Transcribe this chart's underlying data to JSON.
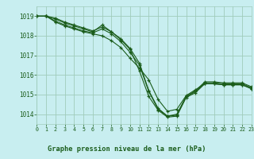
{
  "title": "Graphe pression niveau de la mer (hPa)",
  "bg_color": "#c8eef0",
  "grid_color": "#a0ccbb",
  "line_color": "#1a5c1a",
  "xlim": [
    0,
    23
  ],
  "ylim": [
    1013.5,
    1019.5
  ],
  "yticks": [
    1014,
    1015,
    1016,
    1017,
    1018,
    1019
  ],
  "xticks": [
    0,
    1,
    2,
    3,
    4,
    5,
    6,
    7,
    8,
    9,
    10,
    11,
    12,
    13,
    14,
    15,
    16,
    17,
    18,
    19,
    20,
    21,
    22,
    23
  ],
  "series": [
    [
      1019.0,
      1019.0,
      1018.85,
      1018.65,
      1018.5,
      1018.35,
      1018.2,
      1018.55,
      1018.2,
      1017.8,
      1017.3,
      1016.2,
      1014.9,
      1014.2,
      1013.85,
      1013.9,
      1014.85,
      1015.1,
      1015.55,
      1015.55,
      1015.5,
      1015.5,
      1015.5,
      1015.3
    ],
    [
      1019.0,
      1019.0,
      1018.7,
      1018.5,
      1018.35,
      1018.2,
      1018.1,
      1018.0,
      1017.75,
      1017.4,
      1016.85,
      1016.35,
      1015.75,
      1014.75,
      1014.15,
      1014.25,
      1014.95,
      1015.25,
      1015.55,
      1015.55,
      1015.5,
      1015.5,
      1015.5,
      1015.3
    ],
    [
      1019.0,
      1019.0,
      1018.75,
      1018.55,
      1018.4,
      1018.25,
      1018.15,
      1018.35,
      1018.1,
      1017.7,
      1017.15,
      1016.5,
      1015.15,
      1014.25,
      1013.9,
      1013.95,
      1014.9,
      1015.15,
      1015.6,
      1015.6,
      1015.55,
      1015.55,
      1015.55,
      1015.35
    ],
    [
      1019.0,
      1019.0,
      1018.9,
      1018.7,
      1018.55,
      1018.4,
      1018.25,
      1018.45,
      1018.2,
      1017.85,
      1017.35,
      1016.6,
      1015.2,
      1014.3,
      1013.9,
      1014.0,
      1014.9,
      1015.2,
      1015.65,
      1015.65,
      1015.6,
      1015.6,
      1015.6,
      1015.4
    ]
  ]
}
